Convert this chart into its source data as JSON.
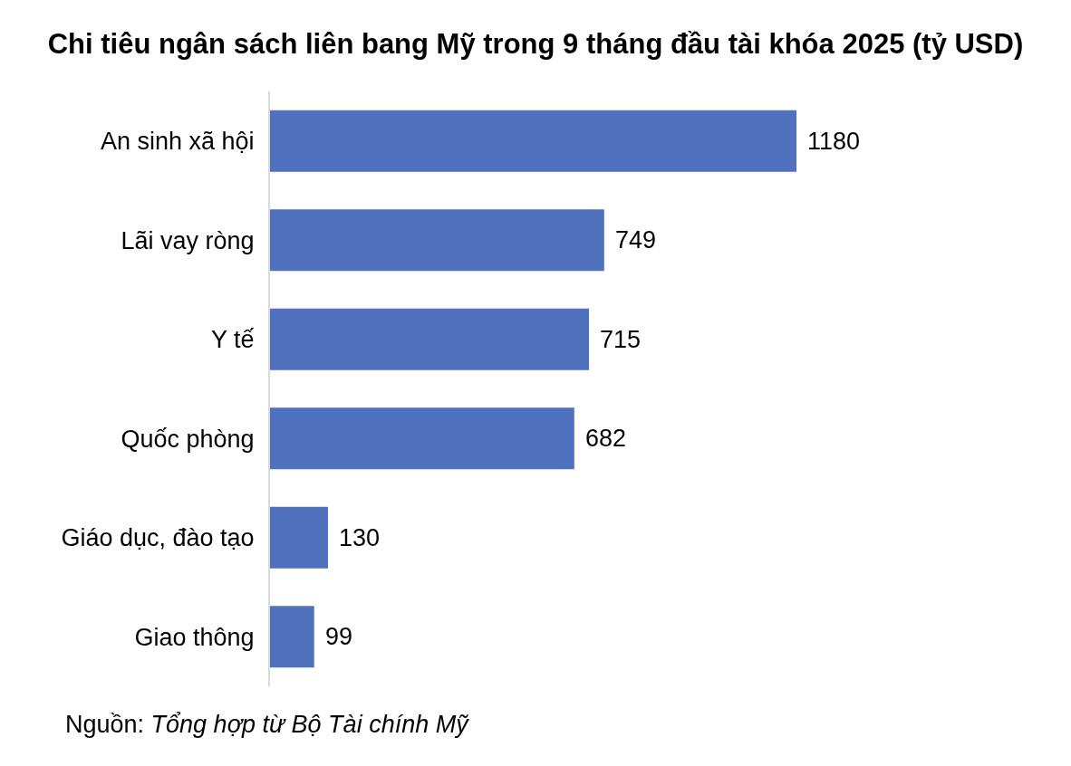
{
  "chart_data": {
    "type": "bar",
    "orientation": "horizontal",
    "title": "Chi tiêu ngân sách liên bang Mỹ trong 9 tháng đầu tài khóa 2025 (tỷ USD)",
    "categories": [
      "An sinh xã hội",
      "Lãi vay ròng",
      "Y tế",
      "Quốc phòng",
      "Giáo dục, đào tạo",
      "Giao thông"
    ],
    "values": [
      1180,
      749,
      715,
      682,
      130,
      99
    ],
    "color": "#4f71be",
    "data_labels": true,
    "tick_labels": "y",
    "annotations": [
      "Nguồn: Tổng hợp từ Bộ Tài chính Mỹ"
    ]
  }
}
